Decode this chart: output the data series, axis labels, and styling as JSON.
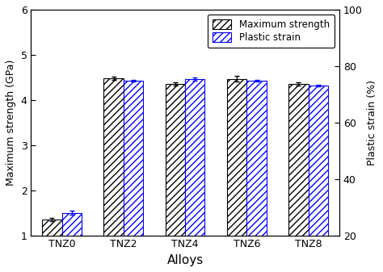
{
  "categories": [
    "TNZ0",
    "TNZ2",
    "TNZ4",
    "TNZ6",
    "TNZ8"
  ],
  "strength_values": [
    1.35,
    4.48,
    4.35,
    4.47,
    4.35
  ],
  "strength_errors": [
    0.04,
    0.03,
    0.04,
    0.06,
    0.04
  ],
  "strain_values": [
    1.5,
    4.42,
    4.46,
    4.42,
    4.32
  ],
  "strain_errors": [
    0.04,
    0.02,
    0.03,
    0.02,
    0.02
  ],
  "left_ylim": [
    1.0,
    6.0
  ],
  "left_yticks": [
    1,
    2,
    3,
    4,
    5,
    6
  ],
  "right_ylim": [
    20,
    100
  ],
  "right_yticks": [
    20,
    40,
    60,
    80,
    100
  ],
  "xlabel": "Alloys",
  "ylabel_left": "Maximum strength (GPa)",
  "ylabel_right": "Plastic strain (%)",
  "legend_labels": [
    "Maximum strength",
    "Plastic strain"
  ],
  "bar_width": 0.32,
  "hatch_strength": "////",
  "hatch_strain": "////",
  "color_strength_face": "white",
  "color_strength_edge": "black",
  "color_strain_face": "white",
  "color_strain_edge": "blue",
  "errorbar_color_strength": "black",
  "errorbar_color_strain": "blue",
  "bg_color": "white"
}
